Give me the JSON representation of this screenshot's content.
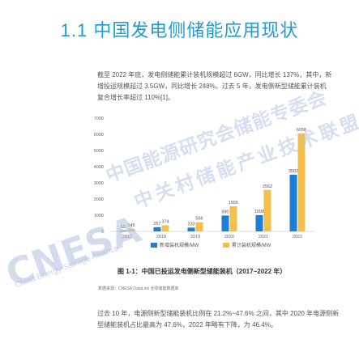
{
  "heading": "1.1  中国发电侧储能应用现状",
  "paragraph1": "截至 2022 年底，发电侧储能累计装机规模超过 6GW，同比增长 137%，其中，新增投运规模超过 3.5GW，同比增长 248%。过去 5 年，发电侧新型储能累计装机复合增长率超过 110%[1]。",
  "chart_data": {
    "type": "bar",
    "categories": [
      "2017",
      "2018",
      "2019",
      "2020",
      "2021",
      "2022"
    ],
    "series": [
      {
        "name": "新增装机规模/MW",
        "color": "#1b7fd6",
        "values": [
          50,
          257,
          233,
          980,
          1008,
          3502
        ]
      },
      {
        "name": "累计装机规模/MW",
        "color": "#f2c14b",
        "values": [
          145,
          374,
          566,
          1555,
          2562,
          6058
        ]
      }
    ],
    "data_labels": [
      [
        "50",
        "145"
      ],
      [
        "257",
        "374"
      ],
      [
        "233",
        "566"
      ],
      [
        "980",
        "1555"
      ],
      [
        "1008",
        "2562"
      ],
      [
        "3502",
        "6058"
      ]
    ],
    "y_ticks": [
      "0",
      "1000",
      "2000",
      "3000",
      "4000",
      "5000",
      "6000",
      "7000"
    ],
    "ylim": [
      0,
      7000
    ],
    "legend_position": "bottom",
    "grid": false
  },
  "caption": "图 1-1：中国已投运发电侧新型储能装机（2017~2022 年）",
  "source": "数据来源：CNESA DataLink 全球储能数据库",
  "paragraph2": "过去 10 年，电源侧新型储能装机比例在 21.2%~47.6% 之间，其中 2020 年电源侧新型储能装机占比最高为 47.6%，2022 年略有下降，为 46.4%。",
  "watermark": {
    "cn_line1": "中国能源研究会储能专委会",
    "cn_line2": "中关村储能产业技术联盟",
    "logo": "CNESA",
    "en": "China Energy Storage Alliance"
  }
}
